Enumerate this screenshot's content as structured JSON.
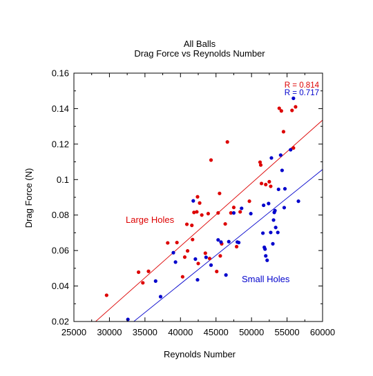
{
  "chart_data": {
    "type": "scatter",
    "title": "All Balls",
    "subtitle": "Drag Force vs Reynolds Number",
    "xlabel": "Reynolds Number",
    "ylabel": "Drag Force (N)",
    "xlim": [
      25000,
      60000
    ],
    "ylim": [
      0.02,
      0.16
    ],
    "x_ticks": [
      25000,
      30000,
      35000,
      40000,
      45000,
      50000,
      55000,
      60000
    ],
    "x_tick_labels": [
      "25000",
      "30000",
      "35000",
      "40000",
      "45000",
      "50000",
      "55000",
      "60000"
    ],
    "y_ticks": [
      0.02,
      0.04,
      0.06,
      0.08,
      0.1,
      0.12,
      0.14,
      0.16
    ],
    "y_tick_labels": [
      "0.02",
      "0.04",
      "0.06",
      "0.08",
      "0.1",
      "0.12",
      "0.14",
      "0.16"
    ],
    "grid": false,
    "annotations": [
      {
        "text": "R = 0.814",
        "color": "#dd0000"
      },
      {
        "text": "R = 0.717",
        "color": "#0000cc"
      }
    ],
    "series": [
      {
        "name": "Large Holes",
        "color": "#dd0000",
        "fit_line": [
          [
            28000,
            0.0198
          ],
          [
            60000,
            0.1335
          ]
        ],
        "points": [
          [
            29600,
            0.0348
          ],
          [
            34100,
            0.0478
          ],
          [
            34700,
            0.0418
          ],
          [
            35500,
            0.0483
          ],
          [
            38200,
            0.0643
          ],
          [
            39500,
            0.0645
          ],
          [
            40300,
            0.0452
          ],
          [
            40600,
            0.0563
          ],
          [
            40900,
            0.0748
          ],
          [
            41000,
            0.0598
          ],
          [
            41600,
            0.0742
          ],
          [
            41700,
            0.0662
          ],
          [
            41900,
            0.0815
          ],
          [
            42300,
            0.0818
          ],
          [
            42400,
            0.0903
          ],
          [
            42500,
            0.0527
          ],
          [
            42700,
            0.0868
          ],
          [
            43000,
            0.08
          ],
          [
            43500,
            0.0585
          ],
          [
            43900,
            0.0808
          ],
          [
            44100,
            0.0555
          ],
          [
            44300,
            0.111
          ],
          [
            45100,
            0.0482
          ],
          [
            45300,
            0.0812
          ],
          [
            45500,
            0.0922
          ],
          [
            45600,
            0.057
          ],
          [
            45800,
            0.0638
          ],
          [
            46300,
            0.075
          ],
          [
            46600,
            0.1212
          ],
          [
            47100,
            0.0812
          ],
          [
            47500,
            0.0843
          ],
          [
            47900,
            0.0622
          ],
          [
            48400,
            0.0818
          ],
          [
            49700,
            0.0878
          ],
          [
            51200,
            0.1098
          ],
          [
            51300,
            0.1082
          ],
          [
            51400,
            0.0978
          ],
          [
            52000,
            0.0972
          ],
          [
            52500,
            0.0988
          ],
          [
            52700,
            0.0962
          ],
          [
            53900,
            0.1402
          ],
          [
            54200,
            0.1387
          ],
          [
            54500,
            0.127
          ],
          [
            55700,
            0.139
          ],
          [
            55900,
            0.1178
          ],
          [
            56200,
            0.141
          ]
        ]
      },
      {
        "name": "Small Holes",
        "color": "#0000cc",
        "fit_line": [
          [
            28000,
            0.0025
          ],
          [
            60000,
            0.1057
          ]
        ],
        "points": [
          [
            32600,
            0.0212
          ],
          [
            36500,
            0.0428
          ],
          [
            37200,
            0.034
          ],
          [
            39000,
            0.0588
          ],
          [
            39300,
            0.0535
          ],
          [
            41800,
            0.088
          ],
          [
            42100,
            0.0552
          ],
          [
            42400,
            0.0435
          ],
          [
            43600,
            0.0562
          ],
          [
            44300,
            0.0518
          ],
          [
            45300,
            0.066
          ],
          [
            45700,
            0.0648
          ],
          [
            46400,
            0.0462
          ],
          [
            46800,
            0.065
          ],
          [
            47500,
            0.0812
          ],
          [
            48000,
            0.0648
          ],
          [
            48200,
            0.0645
          ],
          [
            48600,
            0.0838
          ],
          [
            49900,
            0.0808
          ],
          [
            51600,
            0.0698
          ],
          [
            51700,
            0.0855
          ],
          [
            51800,
            0.0618
          ],
          [
            51900,
            0.0608
          ],
          [
            52000,
            0.057
          ],
          [
            52200,
            0.0545
          ],
          [
            52400,
            0.0865
          ],
          [
            52700,
            0.0702
          ],
          [
            53000,
            0.0638
          ],
          [
            53100,
            0.0772
          ],
          [
            53200,
            0.0815
          ],
          [
            53300,
            0.0825
          ],
          [
            53400,
            0.073
          ],
          [
            53700,
            0.0702
          ],
          [
            53800,
            0.0945
          ],
          [
            54100,
            0.1138
          ],
          [
            54300,
            0.1052
          ],
          [
            54600,
            0.0842
          ],
          [
            54700,
            0.0948
          ],
          [
            55500,
            0.1168
          ],
          [
            55900,
            0.1458
          ],
          [
            56600,
            0.0878
          ],
          [
            52800,
            0.1122
          ]
        ]
      }
    ]
  }
}
